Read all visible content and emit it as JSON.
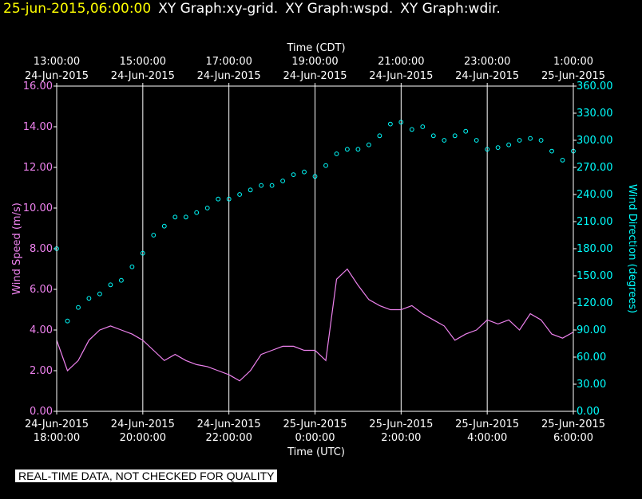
{
  "header": {
    "date": "25-jun-2015,06:00:00",
    "titles": [
      "XY Graph:xy-grid.",
      "XY Graph:wspd.",
      "XY Graph:wdir."
    ]
  },
  "notice": "REAL-TIME DATA, NOT CHECKED FOR QUALITY",
  "colors": {
    "background": "#000000",
    "axis": "#ffffff",
    "speed": "#ee82ee",
    "direction": "#00ffff",
    "date": "#ffff00"
  },
  "chart_data": {
    "type": "line",
    "grid": true,
    "top_axis": {
      "title": "Time (CDT)",
      "ticks": [
        {
          "time": "13:00:00",
          "date": "24-Jun-2015"
        },
        {
          "time": "15:00:00",
          "date": "24-Jun-2015"
        },
        {
          "time": "17:00:00",
          "date": "24-Jun-2015"
        },
        {
          "time": "19:00:00",
          "date": "24-Jun-2015"
        },
        {
          "time": "21:00:00",
          "date": "24-Jun-2015"
        },
        {
          "time": "23:00:00",
          "date": "24-Jun-2015"
        },
        {
          "time": "1:00:00",
          "date": "25-Jun-2015"
        }
      ]
    },
    "bottom_axis": {
      "title": "Time (UTC)",
      "range": [
        "2015-06-24T18:00:00Z",
        "2015-06-25T06:00:00Z"
      ],
      "ticks": [
        {
          "date": "24-Jun-2015",
          "time": "18:00:00"
        },
        {
          "date": "24-Jun-2015",
          "time": "20:00:00"
        },
        {
          "date": "24-Jun-2015",
          "time": "22:00:00"
        },
        {
          "date": "25-Jun-2015",
          "time": "0:00:00"
        },
        {
          "date": "25-Jun-2015",
          "time": "2:00:00"
        },
        {
          "date": "25-Jun-2015",
          "time": "4:00:00"
        },
        {
          "date": "25-Jun-2015",
          "time": "6:00:00"
        }
      ]
    },
    "left_axis": {
      "title": "Wind Speed (m/s)",
      "range": [
        0,
        16
      ],
      "ticks": [
        "0.00",
        "2.00",
        "4.00",
        "6.00",
        "8.00",
        "10.00",
        "12.00",
        "14.00",
        "16.00"
      ]
    },
    "right_axis": {
      "title": "Wind Direction (degrees)",
      "range": [
        0,
        360
      ],
      "ticks": [
        "0.00",
        "30.00",
        "60.00",
        "90.00",
        "120.00",
        "150.00",
        "180.00",
        "210.00",
        "240.00",
        "270.00",
        "300.00",
        "330.00",
        "360.00"
      ]
    },
    "series": [
      {
        "kind": "line",
        "axis": "left",
        "color": "#ee82ee",
        "x": [
          "18:00",
          "18:15",
          "18:30",
          "18:45",
          "19:00",
          "19:15",
          "19:30",
          "19:45",
          "20:00",
          "20:15",
          "20:30",
          "20:45",
          "21:00",
          "21:15",
          "21:30",
          "21:45",
          "22:00",
          "22:15",
          "22:30",
          "22:45",
          "23:00",
          "23:15",
          "23:30",
          "23:45",
          "00:00",
          "00:15",
          "00:30",
          "00:45",
          "01:00",
          "01:15",
          "01:30",
          "01:45",
          "02:00",
          "02:15",
          "02:30",
          "02:45",
          "03:00",
          "03:15",
          "03:30",
          "03:45",
          "04:00",
          "04:15",
          "04:30",
          "04:45",
          "05:00",
          "05:15",
          "05:30",
          "05:45",
          "06:00"
        ],
        "values": [
          3.5,
          2.0,
          2.5,
          3.5,
          4.0,
          4.2,
          4.0,
          3.8,
          3.5,
          3.0,
          2.5,
          2.8,
          2.5,
          2.3,
          2.2,
          2.0,
          1.8,
          1.5,
          2.0,
          2.8,
          3.0,
          3.2,
          3.2,
          3.0,
          3.0,
          2.5,
          6.5,
          7.0,
          6.2,
          5.5,
          5.2,
          5.0,
          5.0,
          5.2,
          4.8,
          4.5,
          4.2,
          3.5,
          3.8,
          4.0,
          4.5,
          4.3,
          4.5,
          4.0,
          4.8,
          4.5,
          3.8,
          3.6,
          3.9
        ]
      },
      {
        "kind": "scatter",
        "axis": "right",
        "color": "#00ffff",
        "x": [
          "18:00",
          "18:15",
          "18:30",
          "18:45",
          "19:00",
          "19:15",
          "19:30",
          "19:45",
          "20:00",
          "20:15",
          "20:30",
          "20:45",
          "21:00",
          "21:15",
          "21:30",
          "21:45",
          "22:00",
          "22:15",
          "22:30",
          "22:45",
          "23:00",
          "23:15",
          "23:30",
          "23:45",
          "00:00",
          "00:15",
          "00:30",
          "00:45",
          "01:00",
          "01:15",
          "01:30",
          "01:45",
          "02:00",
          "02:15",
          "02:30",
          "02:45",
          "03:00",
          "03:15",
          "03:30",
          "03:45",
          "04:00",
          "04:15",
          "04:30",
          "04:45",
          "05:00",
          "05:15",
          "05:30",
          "05:45",
          "06:00"
        ],
        "values": [
          180,
          100,
          115,
          125,
          130,
          140,
          145,
          160,
          175,
          195,
          205,
          215,
          215,
          220,
          225,
          235,
          235,
          240,
          245,
          250,
          250,
          255,
          262,
          265,
          260,
          272,
          285,
          290,
          290,
          295,
          305,
          318,
          320,
          312,
          315,
          305,
          300,
          305,
          310,
          300,
          290,
          292,
          295,
          300,
          302,
          300,
          288,
          278,
          288
        ]
      }
    ]
  }
}
